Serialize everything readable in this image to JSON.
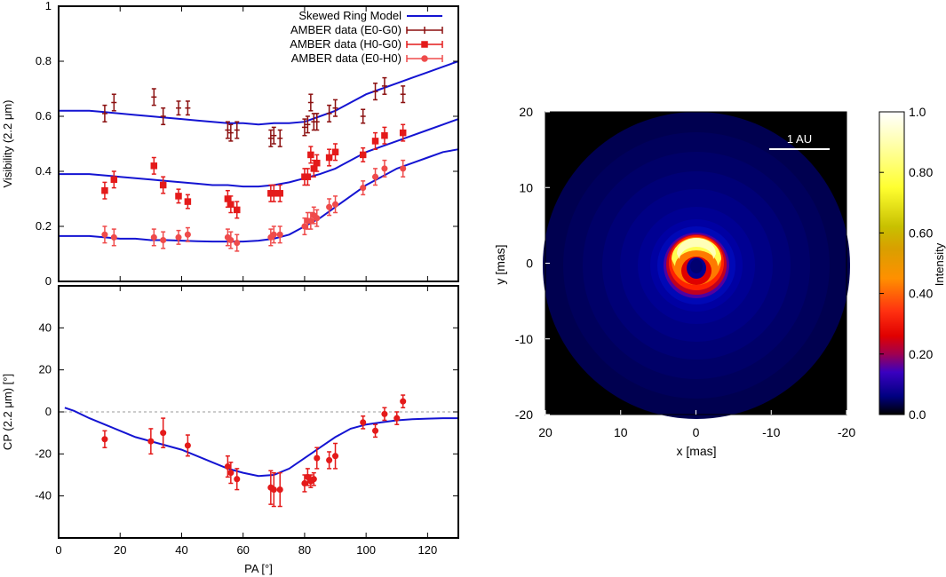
{
  "colors": {
    "model": "#1414d2",
    "e0g0": "#8b0f0f",
    "h0g0": "#e41a1a",
    "e0h0": "#ef4b4b",
    "zero_line": "#999999"
  },
  "legend": {
    "items": [
      {
        "label": "Skewed Ring Model",
        "key": "model"
      },
      {
        "label": "AMBER data (E0-G0)",
        "key": "e0g0"
      },
      {
        "label": "AMBER data (H0-G0)",
        "key": "h0g0"
      },
      {
        "label": "AMBER data (E0-H0)",
        "key": "e0h0"
      }
    ]
  },
  "chart_data": [
    {
      "type": "scatter",
      "ylabel": "Visibility (2.2 μm)",
      "xlim": [
        0,
        130
      ],
      "ylim": [
        0,
        1
      ],
      "yticks": [
        "0",
        "0.2",
        "0.4",
        "0.6",
        "0.8",
        "1"
      ],
      "yticks_values": [
        0,
        0.2,
        0.4,
        0.6,
        0.8,
        1
      ],
      "grid": false,
      "legend_position": "top-right",
      "model_series": [
        {
          "name": "Skewed Ring Model",
          "x": [
            0,
            5,
            10,
            15,
            20,
            25,
            30,
            35,
            40,
            45,
            50,
            55,
            60,
            65,
            70,
            75,
            80,
            85,
            90,
            95,
            100,
            105,
            110,
            115,
            120,
            125,
            130
          ],
          "y": [
            0.62,
            0.62,
            0.62,
            0.615,
            0.61,
            0.605,
            0.6,
            0.595,
            0.59,
            0.585,
            0.58,
            0.575,
            0.575,
            0.57,
            0.575,
            0.575,
            0.58,
            0.6,
            0.62,
            0.65,
            0.68,
            0.7,
            0.72,
            0.74,
            0.76,
            0.78,
            0.8
          ]
        },
        {
          "name": "Skewed Ring Model",
          "x": [
            0,
            5,
            10,
            15,
            20,
            25,
            30,
            35,
            40,
            45,
            50,
            55,
            60,
            65,
            70,
            75,
            80,
            85,
            90,
            95,
            100,
            105,
            110,
            115,
            120,
            125,
            130
          ],
          "y": [
            0.39,
            0.39,
            0.39,
            0.385,
            0.38,
            0.375,
            0.37,
            0.365,
            0.36,
            0.355,
            0.35,
            0.35,
            0.345,
            0.345,
            0.35,
            0.36,
            0.375,
            0.39,
            0.41,
            0.44,
            0.47,
            0.49,
            0.51,
            0.53,
            0.55,
            0.57,
            0.59
          ]
        },
        {
          "name": "Skewed Ring Model",
          "x": [
            0,
            5,
            10,
            15,
            20,
            25,
            30,
            35,
            40,
            45,
            50,
            55,
            60,
            65,
            70,
            75,
            80,
            85,
            90,
            95,
            100,
            105,
            110,
            115,
            120,
            125,
            130
          ],
          "y": [
            0.165,
            0.165,
            0.165,
            0.16,
            0.155,
            0.155,
            0.15,
            0.15,
            0.148,
            0.146,
            0.145,
            0.145,
            0.145,
            0.148,
            0.155,
            0.17,
            0.2,
            0.23,
            0.27,
            0.31,
            0.35,
            0.38,
            0.41,
            0.43,
            0.45,
            0.47,
            0.48
          ]
        }
      ],
      "data_series": [
        {
          "name": "AMBER data (E0-G0)",
          "key": "e0g0",
          "marker": "plus",
          "x": [
            15,
            18,
            31,
            34,
            39,
            42,
            55,
            56,
            58,
            69,
            70,
            72,
            80,
            81,
            82,
            83,
            84,
            88,
            90,
            99,
            103,
            106,
            112
          ],
          "y": [
            0.61,
            0.65,
            0.67,
            0.6,
            0.63,
            0.63,
            0.55,
            0.54,
            0.55,
            0.52,
            0.53,
            0.52,
            0.56,
            0.57,
            0.65,
            0.58,
            0.58,
            0.61,
            0.63,
            0.6,
            0.69,
            0.71,
            0.68
          ],
          "err": [
            0.03,
            0.03,
            0.03,
            0.03,
            0.025,
            0.025,
            0.03,
            0.03,
            0.03,
            0.03,
            0.03,
            0.03,
            0.03,
            0.03,
            0.03,
            0.03,
            0.03,
            0.03,
            0.03,
            0.025,
            0.03,
            0.03,
            0.03
          ]
        },
        {
          "name": "AMBER data (H0-G0)",
          "key": "h0g0",
          "marker": "square",
          "x": [
            15,
            18,
            31,
            34,
            39,
            42,
            55,
            56,
            58,
            69,
            70,
            72,
            80,
            81,
            82,
            83,
            84,
            88,
            90,
            99,
            103,
            106,
            112
          ],
          "y": [
            0.33,
            0.37,
            0.42,
            0.35,
            0.31,
            0.29,
            0.3,
            0.28,
            0.26,
            0.32,
            0.32,
            0.32,
            0.38,
            0.38,
            0.46,
            0.41,
            0.43,
            0.45,
            0.47,
            0.46,
            0.51,
            0.53,
            0.54
          ],
          "err": [
            0.03,
            0.03,
            0.03,
            0.03,
            0.025,
            0.025,
            0.03,
            0.03,
            0.03,
            0.03,
            0.03,
            0.03,
            0.03,
            0.03,
            0.03,
            0.03,
            0.03,
            0.03,
            0.03,
            0.025,
            0.03,
            0.03,
            0.03
          ]
        },
        {
          "name": "AMBER data (E0-H0)",
          "key": "e0h0",
          "marker": "circle",
          "x": [
            15,
            18,
            31,
            34,
            39,
            42,
            55,
            56,
            58,
            69,
            70,
            72,
            80,
            81,
            82,
            83,
            84,
            88,
            90,
            99,
            103,
            106,
            112
          ],
          "y": [
            0.17,
            0.16,
            0.16,
            0.15,
            0.16,
            0.17,
            0.16,
            0.15,
            0.14,
            0.16,
            0.17,
            0.17,
            0.2,
            0.22,
            0.22,
            0.24,
            0.23,
            0.27,
            0.28,
            0.34,
            0.38,
            0.41,
            0.41
          ],
          "err": [
            0.03,
            0.03,
            0.03,
            0.03,
            0.025,
            0.025,
            0.03,
            0.03,
            0.03,
            0.03,
            0.03,
            0.03,
            0.03,
            0.03,
            0.03,
            0.03,
            0.03,
            0.03,
            0.03,
            0.025,
            0.03,
            0.03,
            0.03
          ]
        }
      ]
    },
    {
      "type": "scatter",
      "xlabel": "PA [°]",
      "ylabel": "CP (2.2 μm) [°]",
      "xlim": [
        0,
        130
      ],
      "ylim": [
        -60,
        60
      ],
      "xticks": [
        "0",
        "20",
        "40",
        "60",
        "80",
        "100",
        "120"
      ],
      "xticks_values": [
        0,
        20,
        40,
        60,
        80,
        100,
        120
      ],
      "yticks": [
        "-40",
        "-20",
        "0",
        "20",
        "40"
      ],
      "yticks_values": [
        -40,
        -20,
        0,
        20,
        40
      ],
      "zero_line": true,
      "grid": false,
      "model_series": [
        {
          "name": "Skewed Ring Model",
          "x": [
            2,
            5,
            10,
            15,
            20,
            25,
            30,
            35,
            40,
            45,
            50,
            55,
            60,
            65,
            70,
            75,
            80,
            85,
            90,
            95,
            100,
            105,
            110,
            115,
            120,
            125,
            130
          ],
          "y": [
            2,
            0.5,
            -3,
            -6,
            -9,
            -12,
            -14,
            -16,
            -18,
            -21,
            -24,
            -27,
            -29,
            -30.5,
            -30,
            -27,
            -22,
            -17,
            -12,
            -8,
            -6,
            -5,
            -4,
            -3.5,
            -3.2,
            -3,
            -3
          ]
        }
      ],
      "data_series": [
        {
          "name": "AMBER data (H0-G0)",
          "key": "h0g0",
          "marker": "circle",
          "x": [
            15,
            30,
            34,
            42,
            55,
            56,
            58,
            69,
            70,
            72,
            80,
            81,
            82,
            83,
            84,
            88,
            90,
            99,
            103,
            106,
            110,
            112
          ],
          "y": [
            -13,
            -14,
            -10,
            -16,
            -26,
            -29,
            -32,
            -36,
            -37,
            -37,
            -34,
            -31,
            -33,
            -32,
            -22,
            -23,
            -21,
            -5,
            -9,
            -1,
            -3,
            5
          ],
          "err": [
            4,
            6,
            7,
            5,
            5,
            5,
            5,
            8,
            8,
            8,
            4,
            4,
            3,
            3,
            5,
            4,
            6,
            3,
            3,
            3,
            3,
            3
          ]
        }
      ]
    },
    {
      "type": "heatmap",
      "xlabel": "x [mas]",
      "ylabel": "y [mas]",
      "xlim": [
        20,
        -20
      ],
      "ylim": [
        -20,
        20
      ],
      "xticks": [
        "20",
        "10",
        "0",
        "-10",
        "-20"
      ],
      "xticks_values": [
        20,
        10,
        0,
        -10,
        -20
      ],
      "yticks": [
        "20",
        "10",
        "0",
        "-10",
        "-20"
      ],
      "yticks_values": [
        20,
        10,
        0,
        -10,
        -20
      ],
      "annotation": "1 AU",
      "colorbar": {
        "label": "Intensity",
        "ticks": [
          "1.0",
          "0.80",
          "0.60",
          "0.40",
          "0.20",
          "0.0"
        ],
        "tick_values": [
          1.0,
          0.8,
          0.6,
          0.4,
          0.2,
          0.0
        ],
        "range": [
          0,
          1
        ]
      }
    }
  ]
}
